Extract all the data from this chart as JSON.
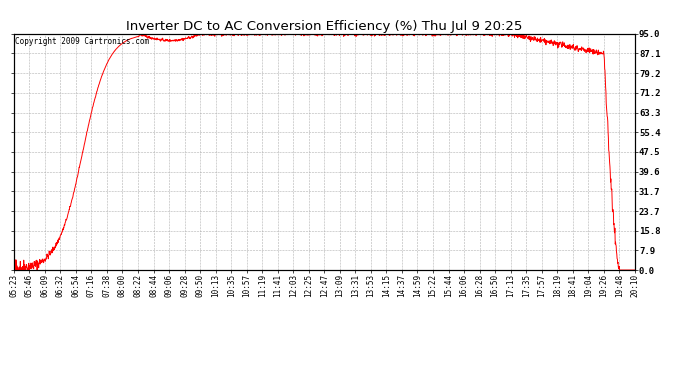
{
  "title": "Inverter DC to AC Conversion Efficiency (%) Thu Jul 9 20:25",
  "copyright_text": "Copyright 2009 Cartronics.com",
  "ylabel_right_ticks": [
    0.0,
    7.9,
    15.8,
    23.7,
    31.7,
    39.6,
    47.5,
    55.4,
    63.3,
    71.2,
    79.2,
    87.1,
    95.0
  ],
  "ylim": [
    0.0,
    95.0
  ],
  "x_tick_labels": [
    "05:23",
    "05:46",
    "06:09",
    "06:32",
    "06:54",
    "07:16",
    "07:38",
    "08:00",
    "08:22",
    "08:44",
    "09:06",
    "09:28",
    "09:50",
    "10:13",
    "10:35",
    "10:57",
    "11:19",
    "11:41",
    "12:03",
    "12:25",
    "12:47",
    "13:09",
    "13:31",
    "13:53",
    "14:15",
    "14:37",
    "14:59",
    "15:22",
    "15:44",
    "16:06",
    "16:28",
    "16:50",
    "17:13",
    "17:35",
    "17:57",
    "18:19",
    "18:41",
    "19:04",
    "19:26",
    "19:48",
    "20:10"
  ],
  "line_color": "#ff0000",
  "background_color": "#ffffff",
  "plot_bg_color": "#ffffff",
  "grid_color": "#b0b0b0",
  "title_fontsize": 9.5,
  "copyright_fontsize": 5.5,
  "tick_fontsize": 5.5,
  "ytick_fontsize": 6.5
}
